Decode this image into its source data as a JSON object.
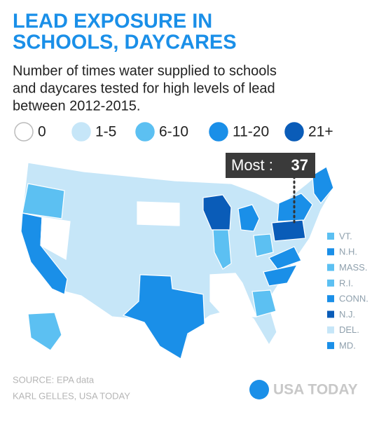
{
  "header": {
    "title_lines": [
      "LEAD EXPOSURE IN",
      "SCHOOLS, DAYCARES"
    ],
    "subtitle_lines": [
      "Number of times water supplied to schools",
      "and daycares tested for high levels of lead",
      "between 2012-2015."
    ]
  },
  "legend": [
    {
      "label": "0",
      "color": "#ffffff"
    },
    {
      "label": "1-5",
      "color": "#c6e6f8"
    },
    {
      "label": "6-10",
      "color": "#5cc0f2"
    },
    {
      "label": "11-20",
      "color": "#1a8fe8"
    },
    {
      "label": "21+",
      "color": "#0a5cb8"
    }
  ],
  "callout": {
    "label": "Most :",
    "value": "37"
  },
  "small_states": [
    {
      "label": "VT.",
      "color": "#5cc0f2"
    },
    {
      "label": "N.H.",
      "color": "#1a8fe8"
    },
    {
      "label": "MASS.",
      "color": "#5cc0f2"
    },
    {
      "label": "R.I.",
      "color": "#5cc0f2"
    },
    {
      "label": "CONN.",
      "color": "#1a8fe8"
    },
    {
      "label": "N.J.",
      "color": "#0a5cb8"
    },
    {
      "label": "DEL.",
      "color": "#c6e6f8"
    },
    {
      "label": "MD.",
      "color": "#1a8fe8"
    }
  ],
  "footer": {
    "source": "SOURCE: EPA data",
    "credit": "KARL GELLES, USA TODAY",
    "logo": "USA TODAY"
  }
}
